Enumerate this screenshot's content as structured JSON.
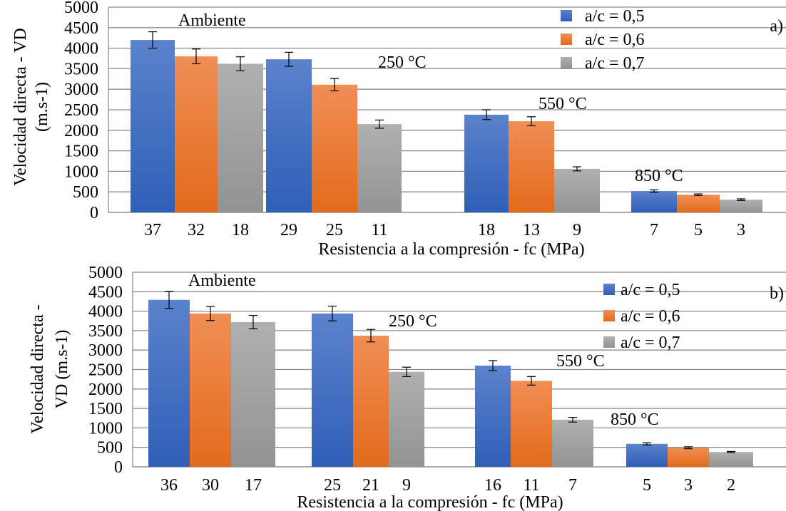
{
  "chart_data": [
    {
      "type": "bar",
      "panel_label": "a)",
      "title": "",
      "ylabel_lines": [
        "Velocidad directa - VD",
        "(m.s-1)"
      ],
      "xlabel": "Resistencia a la compresión - fc (MPa)",
      "ylim": [
        0,
        5000
      ],
      "yticks": [
        "0",
        "500",
        "1000",
        "1500",
        "2000",
        "2500",
        "3000",
        "3500",
        "4000",
        "4500",
        "5000"
      ],
      "grid": true,
      "legend_position": "top-right",
      "groups": [
        {
          "annotation": "Ambiente",
          "tick_labels": [
            "37",
            "32",
            "18"
          ]
        },
        {
          "annotation": "250 °C",
          "tick_labels": [
            "29",
            "25",
            "11"
          ]
        },
        {
          "annotation": "550 °C",
          "tick_labels": [
            "18",
            "13",
            "9"
          ]
        },
        {
          "annotation": "850 °C",
          "tick_labels": [
            "7",
            "5",
            "3"
          ]
        }
      ],
      "series": [
        {
          "name": "a/c = 0,5",
          "color": "#4472C4",
          "values": [
            4200,
            3730,
            2380,
            520
          ],
          "errors": [
            200,
            170,
            120,
            30
          ]
        },
        {
          "name": "a/c = 0,6",
          "color": "#ED7D31",
          "values": [
            3800,
            3110,
            2220,
            430
          ],
          "errors": [
            180,
            150,
            110,
            20
          ]
        },
        {
          "name": "a/c = 0,7",
          "color": "#A5A5A5",
          "values": [
            3620,
            2150,
            1060,
            310
          ],
          "errors": [
            170,
            100,
            50,
            20
          ]
        }
      ]
    },
    {
      "type": "bar",
      "panel_label": "b)",
      "title": "",
      "ylabel_lines": [
        "Velocidad directa -",
        "VD  (m.s-1)"
      ],
      "xlabel": "Resistencia a la compresión - fc (MPa)",
      "ylim": [
        0,
        5000
      ],
      "yticks": [
        "0",
        "500",
        "1000",
        "1500",
        "2000",
        "2500",
        "3000",
        "3500",
        "4000",
        "4500",
        "5000"
      ],
      "grid": true,
      "legend_position": "top-right",
      "groups": [
        {
          "annotation": "Ambiente",
          "tick_labels": [
            "36",
            "30",
            "17"
          ]
        },
        {
          "annotation": "250 °C",
          "tick_labels": [
            "25",
            "21",
            "9"
          ]
        },
        {
          "annotation": "550 °C",
          "tick_labels": [
            "16",
            "11",
            "7"
          ]
        },
        {
          "annotation": "850 °C",
          "tick_labels": [
            "5",
            "3",
            "2"
          ]
        }
      ],
      "series": [
        {
          "name": "a/c = 0,5",
          "color": "#4472C4",
          "values": [
            4290,
            3940,
            2600,
            590
          ],
          "errors": [
            220,
            190,
            130,
            30
          ]
        },
        {
          "name": "a/c = 0,6",
          "color": "#ED7D31",
          "values": [
            3940,
            3370,
            2210,
            490
          ],
          "errors": [
            180,
            160,
            110,
            25
          ]
        },
        {
          "name": "a/c = 0,7",
          "color": "#A5A5A5",
          "values": [
            3720,
            2440,
            1210,
            380
          ],
          "errors": [
            170,
            120,
            60,
            15
          ]
        }
      ]
    }
  ]
}
